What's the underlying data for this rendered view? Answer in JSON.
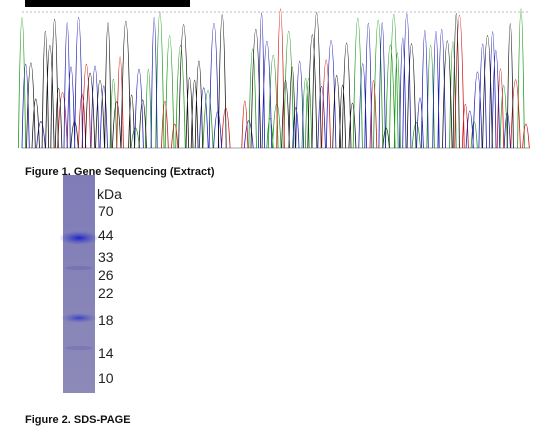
{
  "figure1": {
    "caption": "Figure 1. Gene Sequencing (Extract)"
  },
  "figure2": {
    "caption": "Figure 2. SDS-PAGE",
    "unit": "kDa",
    "markers": [
      70,
      44,
      33,
      26,
      22,
      18,
      14,
      10
    ]
  }
}
